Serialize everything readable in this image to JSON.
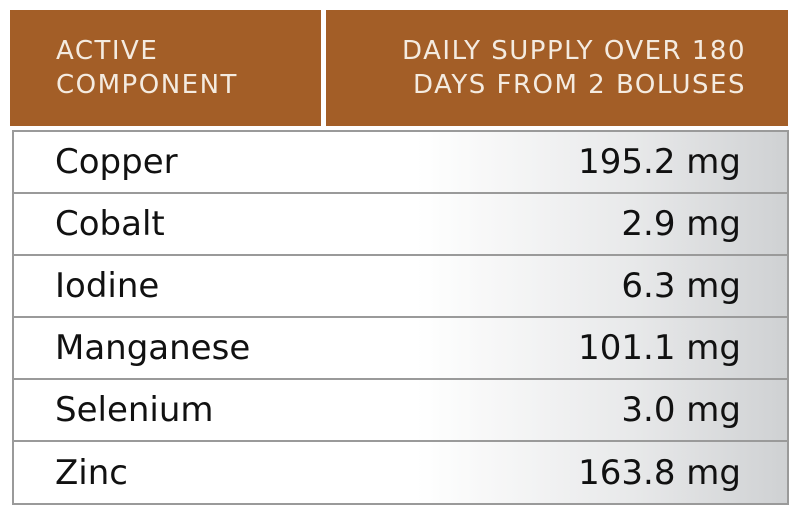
{
  "header": {
    "col1_line1": "ACTIVE",
    "col1_line2": "COMPONENT",
    "col2_line1": "DAILY SUPPLY OVER 180",
    "col2_line2": "DAYS FROM 2 BOLUSES"
  },
  "rows": [
    {
      "component": "Copper",
      "value": "195.2 mg"
    },
    {
      "component": "Cobalt",
      "value": "2.9 mg"
    },
    {
      "component": "Iodine",
      "value": "6.3 mg"
    },
    {
      "component": "Manganese",
      "value": "101.1 mg"
    },
    {
      "component": "Selenium",
      "value": "3.0 mg"
    },
    {
      "component": "Zinc",
      "value": "163.8 mg"
    }
  ],
  "colors": {
    "header_background": "#a35e27",
    "header_text": "#f4ebe0",
    "border": "#9a9a9a"
  }
}
